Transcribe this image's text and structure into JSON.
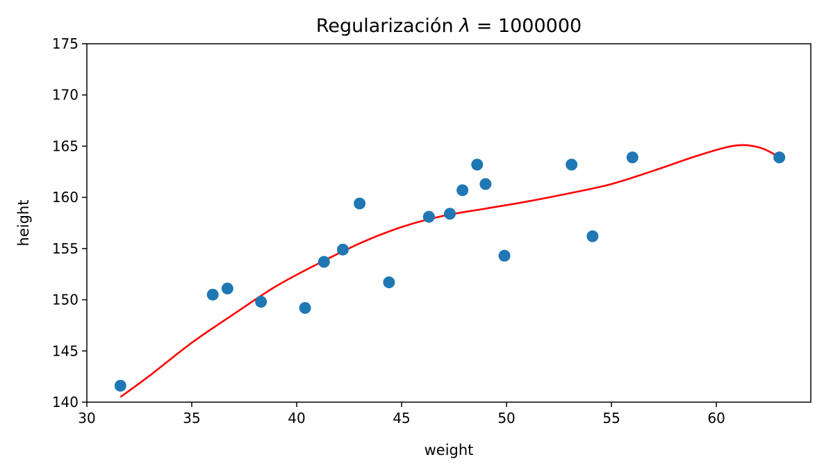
{
  "chart_data": {
    "type": "scatter",
    "title_prefix": "Regularización ",
    "title_symbol": "λ",
    "title_suffix": " = 1000000",
    "xlabel": "weight",
    "ylabel": "height",
    "xlim": [
      30,
      64.5
    ],
    "ylim": [
      140,
      175
    ],
    "xticks": [
      30,
      35,
      40,
      45,
      50,
      55,
      60
    ],
    "yticks": [
      140,
      145,
      150,
      155,
      160,
      165,
      170,
      175
    ],
    "grid": false,
    "legend": "none",
    "colors": {
      "points": "#1f77b4",
      "curve": "#ff0000"
    },
    "points": [
      {
        "x": 31.6,
        "y": 141.6
      },
      {
        "x": 36.0,
        "y": 150.5
      },
      {
        "x": 36.7,
        "y": 151.1
      },
      {
        "x": 38.3,
        "y": 149.8
      },
      {
        "x": 40.4,
        "y": 149.2
      },
      {
        "x": 41.3,
        "y": 153.7
      },
      {
        "x": 42.2,
        "y": 154.9
      },
      {
        "x": 43.0,
        "y": 159.4
      },
      {
        "x": 44.4,
        "y": 151.7
      },
      {
        "x": 46.3,
        "y": 158.1
      },
      {
        "x": 47.3,
        "y": 158.4
      },
      {
        "x": 47.9,
        "y": 160.7
      },
      {
        "x": 48.6,
        "y": 163.2
      },
      {
        "x": 49.0,
        "y": 161.3
      },
      {
        "x": 49.9,
        "y": 154.3
      },
      {
        "x": 53.1,
        "y": 163.2
      },
      {
        "x": 54.1,
        "y": 156.2
      },
      {
        "x": 56.0,
        "y": 163.9
      },
      {
        "x": 63.0,
        "y": 163.9
      }
    ],
    "curve": [
      {
        "x": 31.6,
        "y": 140.5
      },
      {
        "x": 33.0,
        "y": 142.6
      },
      {
        "x": 35.0,
        "y": 145.8
      },
      {
        "x": 37.0,
        "y": 148.6
      },
      {
        "x": 39.0,
        "y": 151.3
      },
      {
        "x": 41.0,
        "y": 153.5
      },
      {
        "x": 43.0,
        "y": 155.5
      },
      {
        "x": 45.0,
        "y": 157.1
      },
      {
        "x": 47.0,
        "y": 158.2
      },
      {
        "x": 49.0,
        "y": 158.9
      },
      {
        "x": 51.0,
        "y": 159.6
      },
      {
        "x": 53.0,
        "y": 160.4
      },
      {
        "x": 55.0,
        "y": 161.3
      },
      {
        "x": 57.0,
        "y": 162.6
      },
      {
        "x": 59.0,
        "y": 164.0
      },
      {
        "x": 60.5,
        "y": 164.9
      },
      {
        "x": 61.3,
        "y": 165.1
      },
      {
        "x": 62.0,
        "y": 164.9
      },
      {
        "x": 62.5,
        "y": 164.5
      },
      {
        "x": 63.0,
        "y": 163.9
      }
    ]
  }
}
